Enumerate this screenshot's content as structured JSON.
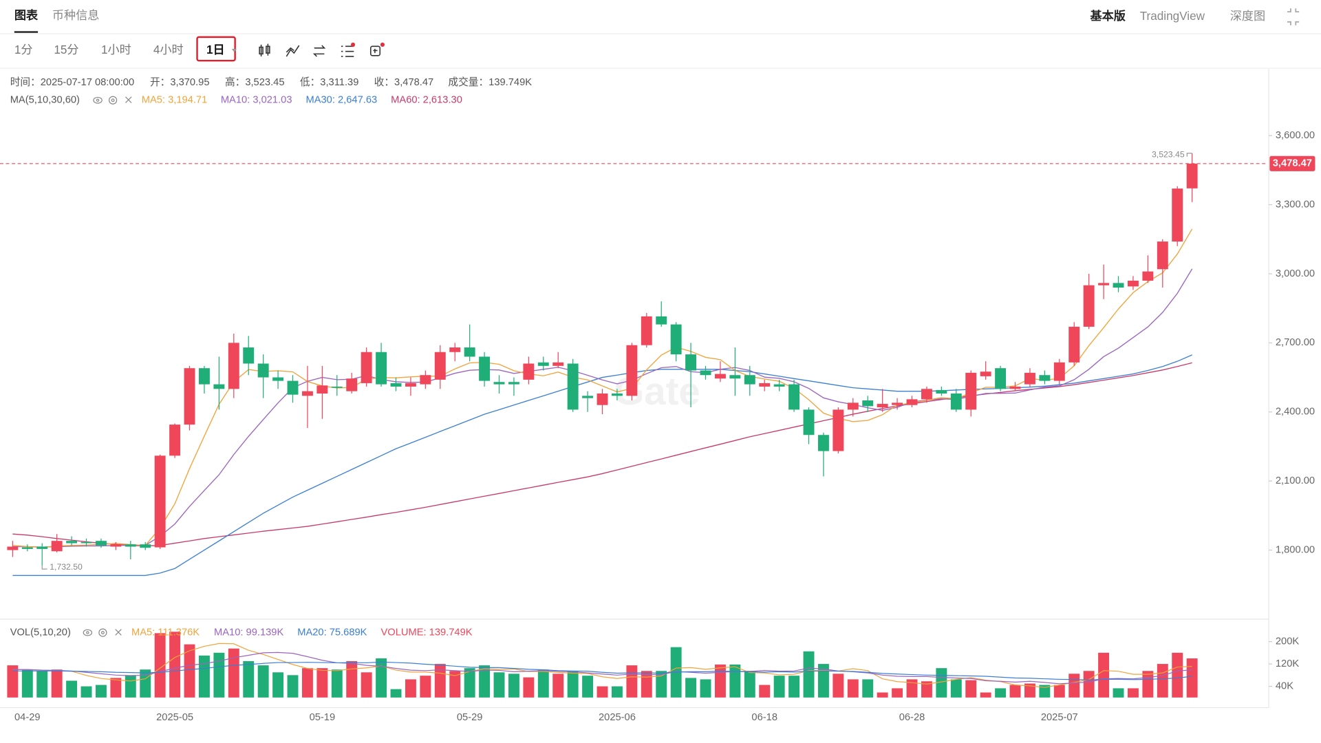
{
  "header": {
    "tabs": [
      "图表",
      "币种信息"
    ],
    "right": [
      "基本版",
      "TradingView",
      "深度图"
    ]
  },
  "toolbar": {
    "intervals": [
      "1分",
      "15分",
      "1小时",
      "4小时",
      "1日"
    ],
    "selected": 4
  },
  "chart_data": [
    {
      "type": "candlestick",
      "info": [
        "时间：2025-07-17 08:00:00",
        "开：3,370.95",
        "高：3,523.45",
        "低：3,311.39",
        "收：3,478.47",
        "成交量：139.749K"
      ],
      "ma_title": "MA(5,10,30,60)",
      "watermark": "Gate",
      "up_color": "#f0465a",
      "down_color": "#1fae78",
      "open": [
        1800,
        1812,
        1815,
        1795,
        1840,
        1835,
        1840,
        1815,
        1825,
        1825,
        1812,
        2210,
        2345,
        2590,
        2520,
        2500,
        2680,
        2610,
        2550,
        2535,
        2470,
        2480,
        2510,
        2490,
        2525,
        2660,
        2525,
        2510,
        2520,
        2540,
        2660,
        2680,
        2640,
        2530,
        2530,
        2540,
        2615,
        2600,
        2610,
        2470,
        2430,
        2480,
        2470,
        2690,
        2815,
        2780,
        2650,
        2580,
        2545,
        2560,
        2560,
        2510,
        2520,
        2520,
        2410,
        2300,
        2230,
        2410,
        2450,
        2420,
        2430,
        2430,
        2455,
        2495,
        2480,
        2410,
        2555,
        2590,
        2500,
        2520,
        2560,
        2535,
        2615,
        2770,
        2950,
        2960,
        2945,
        2970,
        3020,
        3140,
        3370.95
      ],
      "high": [
        1840,
        1825,
        1830,
        1870,
        1860,
        1850,
        1850,
        1835,
        1840,
        1835,
        2215,
        2350,
        2600,
        2600,
        2640,
        2740,
        2730,
        2650,
        2580,
        2560,
        2600,
        2600,
        2560,
        2570,
        2680,
        2700,
        2550,
        2550,
        2580,
        2690,
        2700,
        2780,
        2660,
        2560,
        2550,
        2640,
        2640,
        2660,
        2630,
        2490,
        2500,
        2500,
        2700,
        2830,
        2880,
        2790,
        2700,
        2600,
        2620,
        2680,
        2600,
        2540,
        2540,
        2540,
        2420,
        2310,
        2420,
        2460,
        2470,
        2500,
        2460,
        2470,
        2510,
        2510,
        2500,
        2580,
        2620,
        2600,
        2530,
        2590,
        2580,
        2630,
        2790,
        3000,
        3040,
        2990,
        2990,
        3080,
        3150,
        3380,
        3523.45
      ],
      "low": [
        1770,
        1795,
        1732.5,
        1790,
        1820,
        1815,
        1810,
        1800,
        1760,
        1800,
        1805,
        2200,
        2320,
        2480,
        2410,
        2460,
        2560,
        2460,
        2500,
        2440,
        2330,
        2370,
        2470,
        2480,
        2510,
        2510,
        2490,
        2470,
        2500,
        2500,
        2620,
        2620,
        2510,
        2480,
        2470,
        2520,
        2580,
        2590,
        2400,
        2400,
        2390,
        2450,
        2450,
        2680,
        2770,
        2620,
        2420,
        2540,
        2530,
        2470,
        2470,
        2490,
        2490,
        2400,
        2260,
        2120,
        2220,
        2380,
        2400,
        2400,
        2410,
        2420,
        2440,
        2470,
        2400,
        2380,
        2540,
        2490,
        2490,
        2510,
        2520,
        2520,
        2600,
        2760,
        2890,
        2920,
        2930,
        2960,
        2940,
        3120,
        3311.39
      ],
      "close": [
        1815,
        1805,
        1805,
        1840,
        1830,
        1830,
        1820,
        1825,
        1815,
        1810,
        2210,
        2345,
        2590,
        2520,
        2500,
        2700,
        2610,
        2550,
        2535,
        2475,
        2490,
        2515,
        2505,
        2545,
        2660,
        2520,
        2510,
        2525,
        2560,
        2660,
        2680,
        2640,
        2535,
        2520,
        2520,
        2610,
        2600,
        2615,
        2410,
        2460,
        2480,
        2470,
        2690,
        2815,
        2780,
        2650,
        2580,
        2560,
        2565,
        2545,
        2520,
        2525,
        2510,
        2410,
        2300,
        2230,
        2410,
        2440,
        2425,
        2435,
        2440,
        2455,
        2500,
        2480,
        2410,
        2570,
        2575,
        2500,
        2510,
        2570,
        2535,
        2615,
        2770,
        2950,
        2960,
        2940,
        2970,
        3010,
        3140,
        3370,
        3478.47
      ],
      "series": [
        {
          "name": "MA5: 3,194.71",
          "color": "#f2a33a",
          "values": [
            1820,
            1815,
            1812,
            1818,
            1820,
            1822,
            1825,
            1829,
            1824,
            1820,
            1896,
            2001,
            2154,
            2295,
            2433,
            2531,
            2584,
            2576,
            2579,
            2574,
            2532,
            2513,
            2504,
            2506,
            2543,
            2549,
            2548,
            2552,
            2555,
            2555,
            2587,
            2613,
            2615,
            2607,
            2579,
            2565,
            2557,
            2573,
            2551,
            2539,
            2513,
            2487,
            2502,
            2583,
            2647,
            2681,
            2663,
            2637,
            2627,
            2580,
            2554,
            2543,
            2533,
            2502,
            2453,
            2395,
            2372,
            2358,
            2363,
            2388,
            2430,
            2439,
            2451,
            2462,
            2457,
            2483,
            2507,
            2507,
            2513,
            2545,
            2538,
            2546,
            2600,
            2688,
            2766,
            2847,
            2918,
            2966,
            3004,
            3086,
            3194.71
          ]
        },
        {
          "name": "MA10: 3,021.03",
          "color": "#9a65c1",
          "values": [
            1815,
            1815,
            1813,
            1815,
            1817,
            1818,
            1818,
            1820,
            1821,
            1821,
            1860,
            1913,
            1990,
            2059,
            2127,
            2215,
            2294,
            2367,
            2439,
            2505,
            2533,
            2550,
            2540,
            2542,
            2558,
            2541,
            2531,
            2528,
            2530,
            2548,
            2568,
            2581,
            2584,
            2582,
            2567,
            2576,
            2585,
            2594,
            2579,
            2559,
            2539,
            2522,
            2537,
            2566,
            2592,
            2597,
            2575,
            2570,
            2585,
            2593,
            2580,
            2551,
            2546,
            2531,
            2502,
            2461,
            2444,
            2432,
            2418,
            2407,
            2420,
            2443,
            2452,
            2457,
            2454,
            2468,
            2480,
            2481,
            2482,
            2496,
            2508,
            2513,
            2540,
            2585,
            2640,
            2677,
            2723,
            2769,
            2832,
            2915,
            3021.03
          ]
        },
        {
          "name": "MA30: 2,647.63",
          "color": "#3b7fd4",
          "values": [
            1690,
            1690,
            1690,
            1690,
            1690,
            1690,
            1690,
            1690,
            1690,
            1690,
            1700,
            1720,
            1760,
            1800,
            1840,
            1880,
            1920,
            1960,
            1995,
            2030,
            2060,
            2090,
            2120,
            2150,
            2180,
            2210,
            2240,
            2265,
            2290,
            2315,
            2340,
            2365,
            2390,
            2410,
            2430,
            2450,
            2470,
            2490,
            2510,
            2530,
            2550,
            2560,
            2570,
            2580,
            2585,
            2585,
            2585,
            2585,
            2585,
            2580,
            2575,
            2565,
            2555,
            2545,
            2535,
            2525,
            2515,
            2505,
            2500,
            2495,
            2490,
            2490,
            2490,
            2492,
            2495,
            2498,
            2500,
            2502,
            2505,
            2508,
            2512,
            2518,
            2525,
            2535,
            2545,
            2555,
            2565,
            2580,
            2597,
            2620,
            2647.63
          ]
        },
        {
          "name": "MA60: 2,613.30",
          "color": "#c83a6a",
          "values": [
            1870,
            1865,
            1858,
            1850,
            1843,
            1836,
            1830,
            1825,
            1820,
            1818,
            1820,
            1830,
            1840,
            1850,
            1858,
            1866,
            1874,
            1882,
            1889,
            1896,
            1903,
            1913,
            1923,
            1933,
            1943,
            1954,
            1964,
            1975,
            1986,
            1998,
            2010,
            2022,
            2034,
            2046,
            2058,
            2070,
            2082,
            2094,
            2106,
            2118,
            2132,
            2148,
            2164,
            2180,
            2196,
            2212,
            2228,
            2244,
            2260,
            2276,
            2292,
            2306,
            2320,
            2334,
            2348,
            2362,
            2376,
            2390,
            2403,
            2415,
            2426,
            2436,
            2445,
            2454,
            2462,
            2470,
            2478,
            2485,
            2492,
            2498,
            2504,
            2510,
            2518,
            2528,
            2538,
            2548,
            2558,
            2570,
            2582,
            2597,
            2613.3
          ]
        }
      ],
      "ylim": [
        1500,
        3878
      ],
      "yticks": [
        {
          "value": 1800,
          "label": "1,800.00"
        },
        {
          "value": 2100,
          "label": "2,100.00"
        },
        {
          "value": 2400,
          "label": "2,400.00"
        },
        {
          "value": 2700,
          "label": "2,700.00"
        },
        {
          "value": 3000,
          "label": "3,000.00"
        },
        {
          "value": 3300,
          "label": "3,300.00"
        },
        {
          "value": 3600,
          "label": "3,600.00"
        }
      ],
      "last_price": {
        "value": 3478.47,
        "label": "3,478.47"
      },
      "annotations": [
        {
          "index": 80,
          "value": 3523.45,
          "label": "3,523.45"
        },
        {
          "index": 2,
          "value": 1732.5,
          "label": "1,732.50"
        }
      ],
      "grid": false
    },
    {
      "type": "bar",
      "title": "VOL(5,10,20)",
      "name": "VOLUME: 139.749K",
      "name_color": "#f0465a",
      "categories": [
        null,
        "04-29",
        null,
        null,
        null,
        null,
        null,
        null,
        null,
        null,
        null,
        "2025-05",
        null,
        null,
        null,
        null,
        null,
        null,
        null,
        null,
        null,
        "05-19",
        null,
        null,
        null,
        null,
        null,
        null,
        null,
        null,
        null,
        "05-29",
        null,
        null,
        null,
        null,
        null,
        null,
        null,
        null,
        null,
        "2025-06",
        null,
        null,
        null,
        null,
        null,
        null,
        null,
        null,
        null,
        "06-18",
        null,
        null,
        null,
        null,
        null,
        null,
        null,
        null,
        null,
        "06-28",
        null,
        null,
        null,
        null,
        null,
        null,
        null,
        null,
        null,
        "2025-07",
        null,
        null,
        null,
        null,
        null,
        null,
        null,
        null,
        null
      ],
      "values": [
        115,
        100,
        95,
        100,
        60,
        40,
        45,
        70,
        80,
        100,
        230,
        235,
        190,
        150,
        160,
        175,
        130,
        115,
        90,
        80,
        105,
        105,
        100,
        130,
        90,
        140,
        30,
        65,
        78,
        120,
        95,
        105,
        115,
        90,
        85,
        72,
        100,
        85,
        95,
        78,
        40,
        40,
        115,
        95,
        95,
        180,
        70,
        65,
        118,
        118,
        95,
        45,
        78,
        78,
        165,
        120,
        85,
        65,
        65,
        18,
        33,
        65,
        58,
        105,
        65,
        62,
        18,
        33,
        45,
        50,
        45,
        45,
        85,
        95,
        160,
        33,
        33,
        95,
        120,
        160,
        139.749
      ],
      "series": [
        {
          "name": "MA5: 111.376K",
          "color": "#f2a33a",
          "values": [
            100,
            100,
            98,
            96,
            94,
            79,
            68,
            63,
            59,
            67,
            105,
            143,
            167,
            183,
            193,
            192,
            169,
            154,
            136,
            118,
            104,
            97,
            96,
            102,
            106,
            113,
            98,
            91,
            91,
            87,
            78,
            93,
            103,
            101,
            102,
            93,
            93,
            90,
            87,
            86,
            74,
            68,
            74,
            73,
            77,
            105,
            107,
            101,
            106,
            110,
            89,
            88,
            81,
            83,
            96,
            97,
            95,
            103,
            96,
            67,
            57,
            53,
            48,
            56,
            65,
            71,
            62,
            57,
            45,
            42,
            36,
            45,
            54,
            64,
            96,
            94,
            83,
            83,
            88,
            109,
            111.376
          ]
        },
        {
          "name": "MA10: 99.139K",
          "color": "#9a65c1",
          "values": [
            100,
            100,
            98,
            97,
            95,
            90,
            85,
            80,
            78,
            80,
            92,
            105,
            115,
            121,
            130,
            142,
            151,
            160,
            161,
            158,
            146,
            133,
            124,
            122,
            115,
            112,
            104,
            98,
            96,
            99,
            96,
            93,
            98,
            97,
            92,
            94,
            96,
            94,
            92,
            88,
            84,
            80,
            84,
            82,
            82,
            93,
            90,
            87,
            90,
            93,
            93,
            97,
            94,
            95,
            105,
            102,
            95,
            92,
            88,
            80,
            76,
            75,
            75,
            72,
            70,
            68,
            60,
            58,
            55,
            58,
            54,
            49,
            52,
            55,
            67,
            68,
            67,
            71,
            79,
            95,
            99.139
          ]
        },
        {
          "name": "MA20: 75.689K",
          "color": "#3b7fd4",
          "values": [
            95,
            95,
            95,
            95,
            94,
            93,
            92,
            90,
            89,
            88,
            90,
            95,
            100,
            104,
            110,
            115,
            118,
            122,
            125,
            125,
            126,
            125,
            124,
            125,
            124,
            127,
            125,
            123,
            119,
            116,
            112,
            108,
            107,
            107,
            104,
            101,
            99,
            96,
            95,
            94,
            90,
            87,
            88,
            88,
            87,
            91,
            92,
            92,
            94,
            93,
            92,
            91,
            92,
            91,
            94,
            95,
            94,
            93,
            90,
            86,
            84,
            82,
            80,
            79,
            78,
            77,
            76,
            73,
            70,
            69,
            67,
            65,
            64,
            63,
            65,
            65,
            64,
            65,
            67,
            70,
            75.689
          ]
        }
      ],
      "ylim": [
        0,
        265
      ],
      "yticks": [
        {
          "value": 40,
          "label": "40K"
        },
        {
          "value": 120,
          "label": "120K"
        },
        {
          "value": 200,
          "label": "200K"
        }
      ]
    }
  ]
}
